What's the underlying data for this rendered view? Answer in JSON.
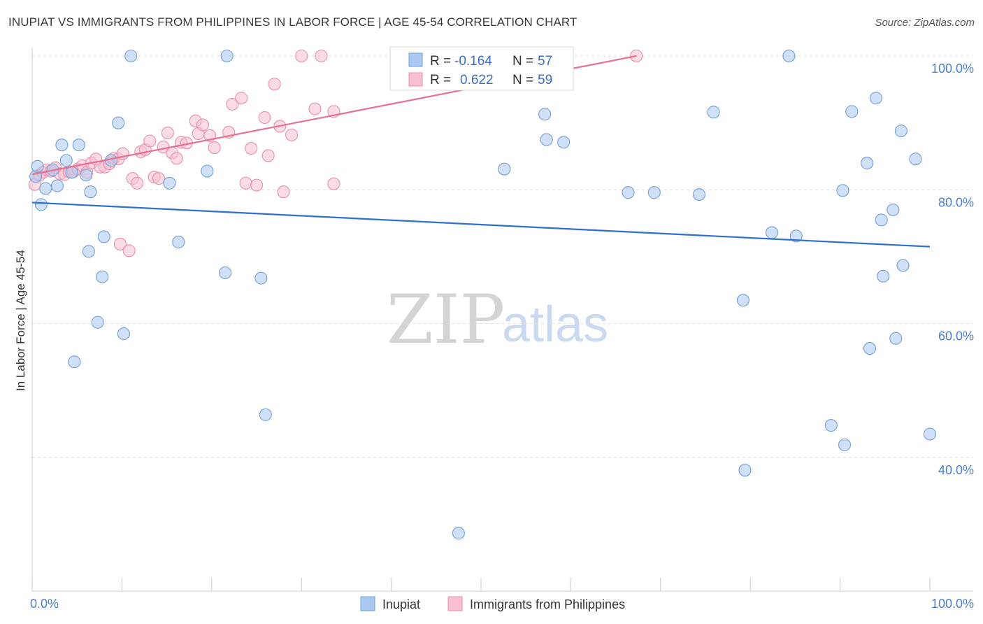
{
  "title": "INUPIAT VS IMMIGRANTS FROM PHILIPPINES IN LABOR FORCE | AGE 45-54 CORRELATION CHART",
  "source": "Source: ZipAtlas.com",
  "watermark": {
    "zip": "ZIP",
    "atlas": "atlas"
  },
  "colors": {
    "blue_fill": "#aac8f0",
    "blue_stroke": "#6f9fdb",
    "blue_line": "#2f6fcf",
    "pink_fill": "#f7bfd0",
    "pink_stroke": "#e88fab",
    "pink_line": "#e5708f",
    "grid": "#dddddd",
    "axis_text": "#4a7fd0"
  },
  "legend": {
    "rows": [
      {
        "r_label": "R =",
        "r_value": "-0.164",
        "n_label": "N =",
        "n_value": "57"
      },
      {
        "r_label": "R =",
        "r_value": "0.622",
        "n_label": "N =",
        "n_value": "59"
      }
    ]
  },
  "bottom_legend": [
    "Inupiat",
    "Immigrants from Philippines"
  ],
  "chart_data": {
    "type": "scatter",
    "title": "INUPIAT VS IMMIGRANTS FROM PHILIPPINES IN LABOR FORCE | AGE 45-54 CORRELATION CHART",
    "xlabel": "",
    "ylabel": "In Labor Force | Age 45-54",
    "xlim": [
      0,
      100
    ],
    "ylim": [
      20,
      102
    ],
    "x_tick_labels": [
      "0.0%",
      "100.0%"
    ],
    "y_ticks": [
      40,
      60,
      80,
      100
    ],
    "y_tick_labels": [
      "40.0%",
      "60.0%",
      "80.0%",
      "100.0%"
    ],
    "grid": true,
    "series": [
      {
        "name": "Inupiat",
        "r": -0.164,
        "n": 57,
        "trend": {
          "x": [
            0,
            100
          ],
          "y": [
            78.1,
            71.5
          ]
        },
        "points": [
          [
            0.4,
            82.0
          ],
          [
            0.6,
            83.5
          ],
          [
            1.0,
            77.8
          ],
          [
            1.5,
            80.2
          ],
          [
            2.3,
            83.0
          ],
          [
            2.8,
            80.6
          ],
          [
            3.3,
            86.7
          ],
          [
            3.8,
            84.4
          ],
          [
            4.4,
            82.6
          ],
          [
            5.2,
            86.7
          ],
          [
            6.0,
            82.2
          ],
          [
            6.5,
            79.7
          ],
          [
            7.8,
            67.0
          ],
          [
            7.3,
            60.2
          ],
          [
            8.0,
            73.0
          ],
          [
            6.3,
            70.8
          ],
          [
            9.6,
            90.0
          ],
          [
            10.2,
            58.5
          ],
          [
            4.7,
            54.3
          ],
          [
            8.8,
            84.4
          ],
          [
            11.0,
            100.0
          ],
          [
            15.3,
            81.0
          ],
          [
            16.3,
            72.2
          ],
          [
            19.5,
            82.8
          ],
          [
            21.7,
            100.0
          ],
          [
            21.5,
            67.6
          ],
          [
            25.5,
            66.8
          ],
          [
            26.0,
            46.4
          ],
          [
            47.5,
            28.7
          ],
          [
            52.6,
            83.1
          ],
          [
            57.1,
            91.3
          ],
          [
            57.3,
            87.5
          ],
          [
            59.2,
            87.1
          ],
          [
            66.4,
            79.6
          ],
          [
            69.3,
            79.6
          ],
          [
            74.3,
            79.3
          ],
          [
            75.9,
            91.6
          ],
          [
            79.2,
            63.5
          ],
          [
            79.4,
            38.1
          ],
          [
            82.4,
            73.6
          ],
          [
            85.1,
            73.1
          ],
          [
            84.3,
            100.0
          ],
          [
            89.0,
            44.8
          ],
          [
            90.3,
            79.9
          ],
          [
            90.5,
            41.9
          ],
          [
            91.3,
            91.7
          ],
          [
            93.0,
            84.0
          ],
          [
            93.3,
            56.3
          ],
          [
            94.0,
            93.7
          ],
          [
            94.6,
            75.5
          ],
          [
            94.8,
            67.1
          ],
          [
            95.9,
            77.0
          ],
          [
            96.2,
            57.8
          ],
          [
            96.8,
            88.8
          ],
          [
            97.0,
            68.7
          ],
          [
            98.4,
            84.6
          ],
          [
            100.0,
            43.5
          ]
        ]
      },
      {
        "name": "Immigrants from Philippines",
        "r": 0.622,
        "n": 59,
        "trend": {
          "x": [
            0,
            67.3
          ],
          "y": [
            82.3,
            100.0
          ]
        },
        "points": [
          [
            0.3,
            80.8
          ],
          [
            0.8,
            82.2
          ],
          [
            1.2,
            82.6
          ],
          [
            1.6,
            83.0
          ],
          [
            2.1,
            82.8
          ],
          [
            2.6,
            83.3
          ],
          [
            3.1,
            82.4
          ],
          [
            3.6,
            82.3
          ],
          [
            4.1,
            82.7
          ],
          [
            4.6,
            82.7
          ],
          [
            5.1,
            83.1
          ],
          [
            5.6,
            83.6
          ],
          [
            6.1,
            82.6
          ],
          [
            6.6,
            84.0
          ],
          [
            7.1,
            84.6
          ],
          [
            7.6,
            83.4
          ],
          [
            8.1,
            83.4
          ],
          [
            8.6,
            83.9
          ],
          [
            9.1,
            84.7
          ],
          [
            9.6,
            84.6
          ],
          [
            10.1,
            85.4
          ],
          [
            9.8,
            71.9
          ],
          [
            10.8,
            70.9
          ],
          [
            11.2,
            81.7
          ],
          [
            11.7,
            81.0
          ],
          [
            12.1,
            85.7
          ],
          [
            12.6,
            86.0
          ],
          [
            13.1,
            87.3
          ],
          [
            13.6,
            81.9
          ],
          [
            14.1,
            81.7
          ],
          [
            14.6,
            86.4
          ],
          [
            15.1,
            88.5
          ],
          [
            15.6,
            85.5
          ],
          [
            16.1,
            84.7
          ],
          [
            16.6,
            87.1
          ],
          [
            17.2,
            87.0
          ],
          [
            18.2,
            90.3
          ],
          [
            18.5,
            88.4
          ],
          [
            19.0,
            89.7
          ],
          [
            19.8,
            88.1
          ],
          [
            20.3,
            86.3
          ],
          [
            21.9,
            88.6
          ],
          [
            22.3,
            92.8
          ],
          [
            23.3,
            93.7
          ],
          [
            23.8,
            81.0
          ],
          [
            24.4,
            86.2
          ],
          [
            25.0,
            80.7
          ],
          [
            25.9,
            90.8
          ],
          [
            26.3,
            85.1
          ],
          [
            27.0,
            95.8
          ],
          [
            27.6,
            89.5
          ],
          [
            28.0,
            79.7
          ],
          [
            28.9,
            88.2
          ],
          [
            30.0,
            100.0
          ],
          [
            31.5,
            92.1
          ],
          [
            32.2,
            100.0
          ],
          [
            33.6,
            91.7
          ],
          [
            33.6,
            80.9
          ],
          [
            67.3,
            100.0
          ]
        ]
      }
    ]
  }
}
